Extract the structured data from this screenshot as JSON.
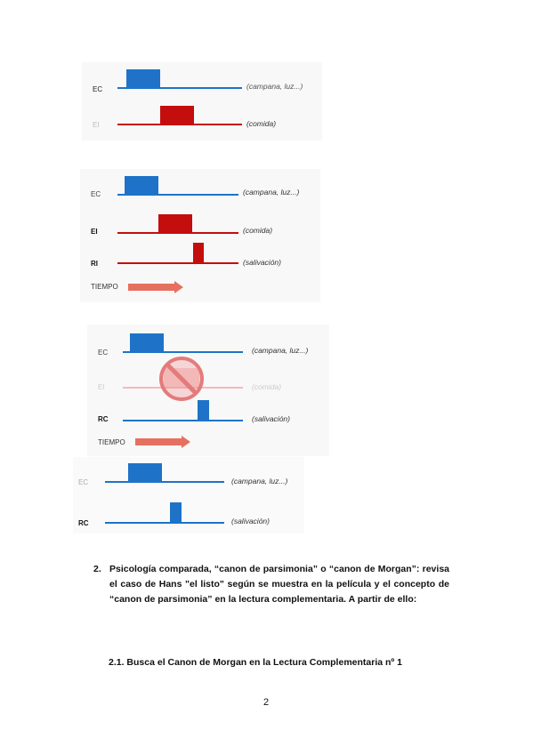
{
  "diagram1": {
    "ec_label": "EC",
    "ei_label": "EI",
    "ec_note": "(campana, luz...)",
    "ei_note": "(comida)"
  },
  "diagram2": {
    "ec_label": "EC",
    "ei_label": "EI",
    "ri_label": "RI",
    "ec_note": "(campana, luz...)",
    "ei_note": "(comida)",
    "ri_note": "(salivación)",
    "time_label": "TIEMPO"
  },
  "diagram3": {
    "ec_label": "EC",
    "ei_label": "EI",
    "rc_label": "RC",
    "ec_note": "(campana, luz...)",
    "ei_note": "(comida)",
    "rc_note": "(salivación)",
    "time_label": "TIEMPO",
    "noentry_icon": "prohibited-icon"
  },
  "diagram4": {
    "ec_label": "EC",
    "rc_label": "RC",
    "ec_note": "(campana, luz...)",
    "rc_note": "(salivación)"
  },
  "question": {
    "number": "2.",
    "text": "Psicología comparada, “canon de parsimonia” o “canon de Morgan”: revisa el caso de Hans \"el listo\" según se muestra en la película y el concepto de “canon de parsimonia” en la lectura complementaria. A partir de ello:"
  },
  "subquestion": "2.1. Busca el Canon de Morgan en la Lectura Complementaria nº 1",
  "page_number": "2",
  "colors": {
    "blue": "#1e73c8",
    "red": "#c40d0d",
    "arrow": "#e6705f"
  }
}
